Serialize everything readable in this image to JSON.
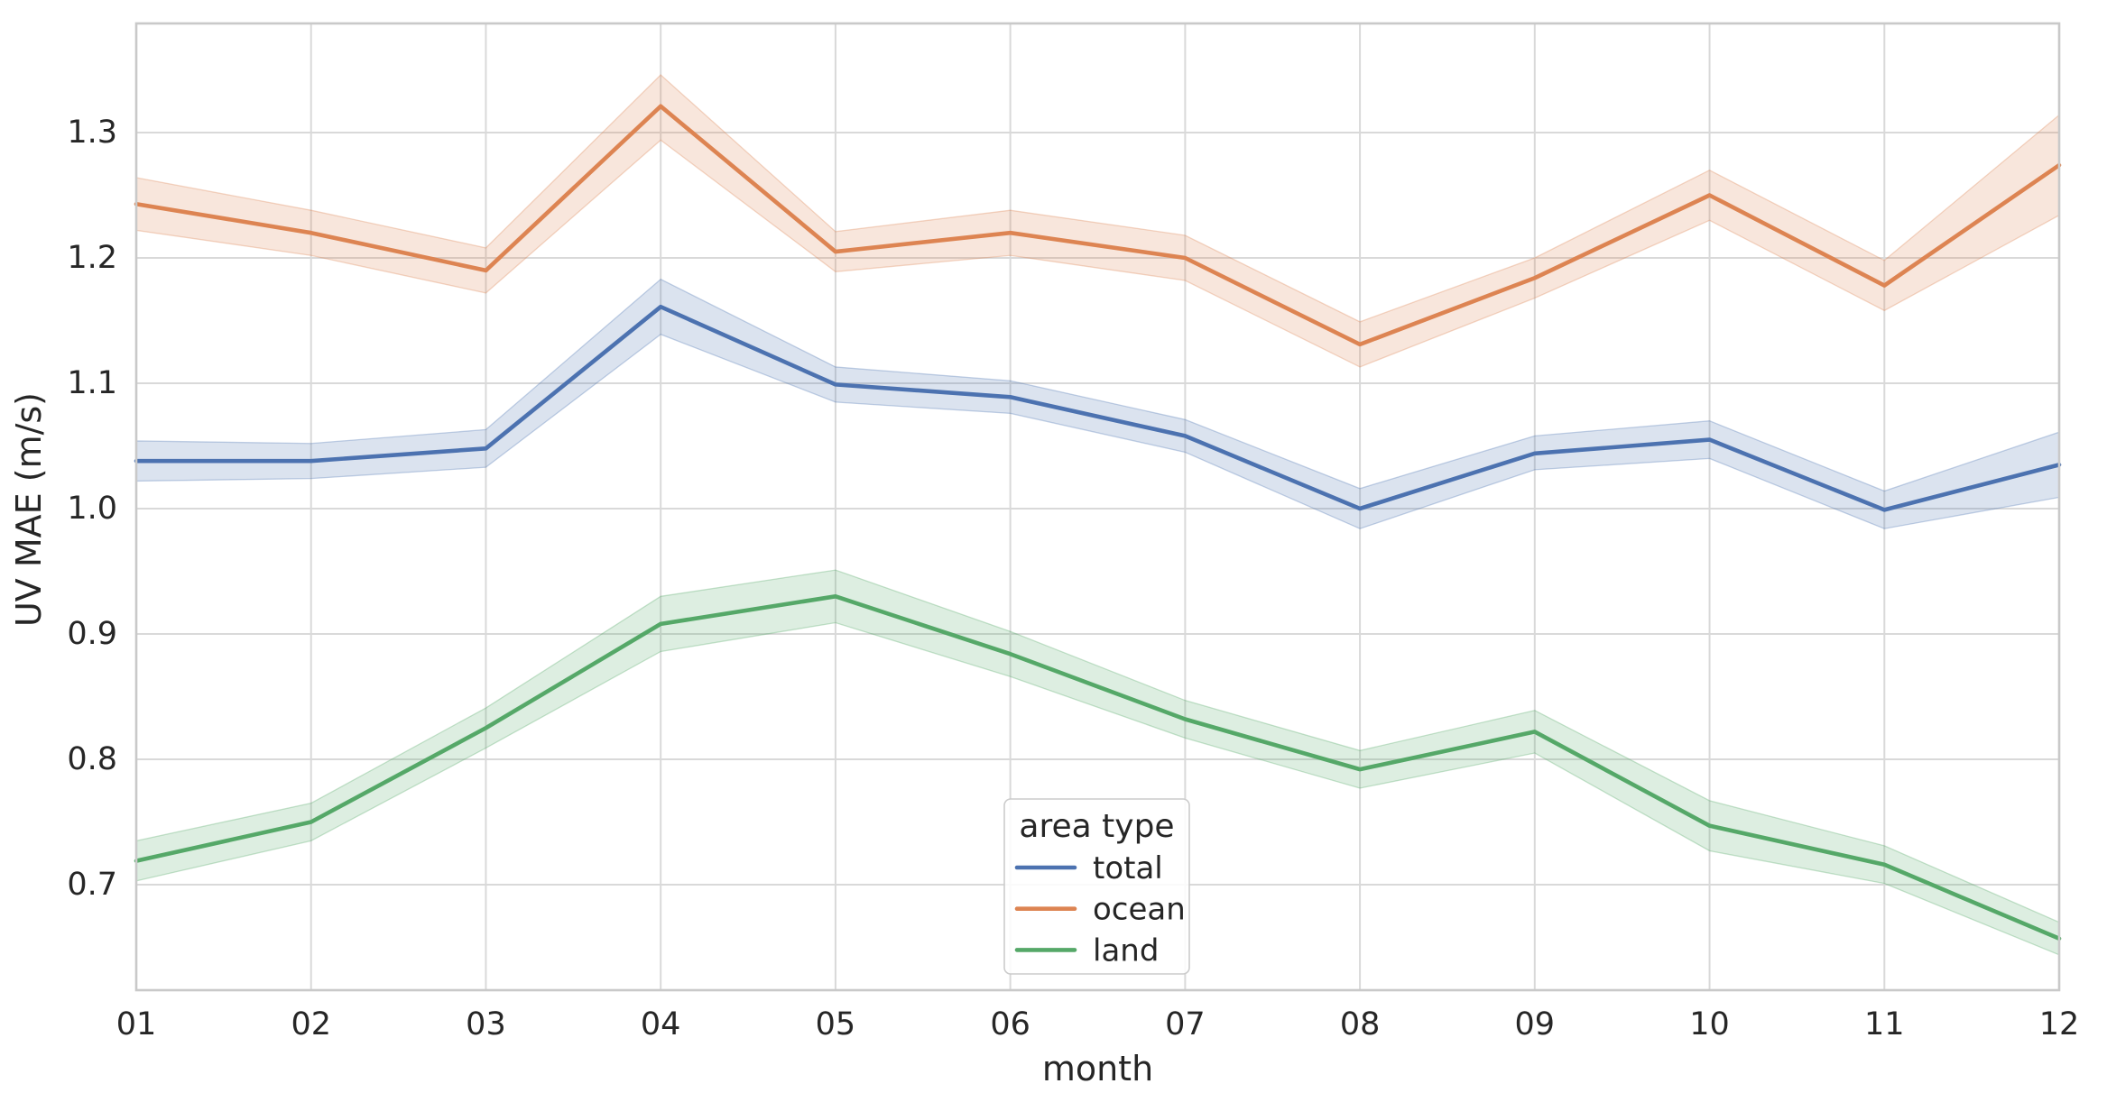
{
  "figure": {
    "kind": "matplotlib-seaborn line chart with confidence bands",
    "background": "#ffffff"
  },
  "colors": {
    "total": "#4C72B0",
    "ocean": "#DD8452",
    "land": "#55A868",
    "grid": "#D9D9D9",
    "spine": "#C9C9C9",
    "text": "#262626",
    "legend_face": "#FFFFFF",
    "legend_edge": "#CCCCCC",
    "band_alpha": 0.2
  },
  "chart_data": {
    "type": "line",
    "title": "",
    "xlabel": "month",
    "ylabel": "UV MAE (m/s)",
    "categories": [
      "01",
      "02",
      "03",
      "04",
      "05",
      "06",
      "07",
      "08",
      "09",
      "10",
      "11",
      "12"
    ],
    "y_ticks": [
      "0.7",
      "0.8",
      "0.9",
      "1.0",
      "1.1",
      "1.2",
      "1.3"
    ],
    "y_tick_values": [
      0.7,
      0.8,
      0.9,
      1.0,
      1.1,
      1.2,
      1.3
    ],
    "ylim": [
      0.616,
      1.387
    ],
    "grid": true,
    "legend": {
      "title": "area type",
      "position": "lower-center-right"
    },
    "series": [
      {
        "name": "total",
        "color": "#4C72B0",
        "values": [
          1.038,
          1.038,
          1.048,
          1.161,
          1.099,
          1.089,
          1.058,
          1.0,
          1.044,
          1.055,
          0.999,
          1.035
        ],
        "band_lower": [
          1.022,
          1.024,
          1.033,
          1.139,
          1.085,
          1.076,
          1.045,
          0.984,
          1.031,
          1.04,
          0.984,
          1.009
        ],
        "band_upper": [
          1.054,
          1.052,
          1.063,
          1.183,
          1.113,
          1.102,
          1.071,
          1.016,
          1.058,
          1.07,
          1.014,
          1.061
        ]
      },
      {
        "name": "ocean",
        "color": "#DD8452",
        "values": [
          1.243,
          1.22,
          1.19,
          1.321,
          1.205,
          1.22,
          1.2,
          1.131,
          1.184,
          1.25,
          1.178,
          1.274
        ],
        "band_lower": [
          1.222,
          1.202,
          1.172,
          1.294,
          1.189,
          1.202,
          1.182,
          1.113,
          1.168,
          1.23,
          1.158,
          1.234
        ],
        "band_upper": [
          1.264,
          1.238,
          1.208,
          1.346,
          1.221,
          1.238,
          1.218,
          1.149,
          1.2,
          1.27,
          1.198,
          1.314
        ]
      },
      {
        "name": "land",
        "color": "#55A868",
        "values": [
          0.719,
          0.75,
          0.825,
          0.908,
          0.93,
          0.884,
          0.832,
          0.792,
          0.822,
          0.747,
          0.716,
          0.657
        ],
        "band_lower": [
          0.703,
          0.735,
          0.809,
          0.886,
          0.909,
          0.866,
          0.817,
          0.777,
          0.805,
          0.727,
          0.701,
          0.644
        ],
        "band_upper": [
          0.735,
          0.765,
          0.841,
          0.93,
          0.951,
          0.902,
          0.847,
          0.807,
          0.839,
          0.767,
          0.731,
          0.67
        ]
      }
    ]
  }
}
